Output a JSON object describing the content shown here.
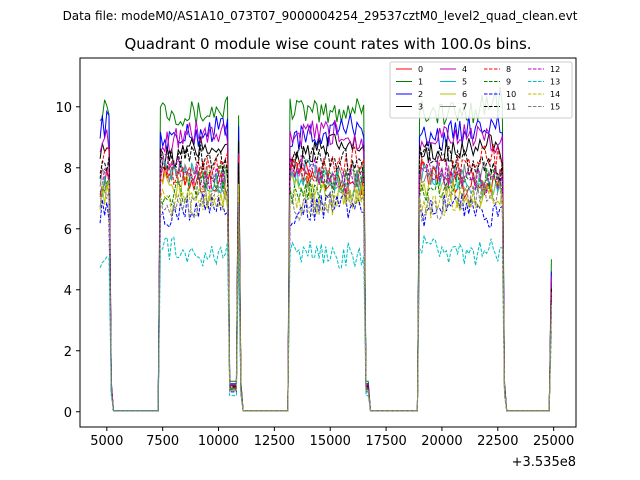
{
  "chart_data": {
    "type": "line",
    "suptitle": "Data file: modeM0/AS1A10_073T07_9000004254_29537cztM0_level2_quad_clean.evt",
    "title": "Quadrant 0 module wise count rates with 100.0s bins.",
    "xlabel": "",
    "ylabel": "",
    "x_offset_label": "+3.535e8",
    "xlim": [
      3800,
      26000
    ],
    "ylim": [
      -0.5,
      11.6
    ],
    "x_ticks": [
      5000,
      7500,
      10000,
      12500,
      15000,
      17500,
      20000,
      22500,
      25000
    ],
    "x_tick_labels": [
      "5000",
      "7500",
      "10000",
      "12500",
      "15000",
      "17500",
      "20000",
      "22500",
      "25000"
    ],
    "y_ticks": [
      0,
      2,
      4,
      6,
      8,
      10
    ],
    "y_tick_labels": [
      "0",
      "2",
      "4",
      "6",
      "8",
      "10"
    ],
    "grid": false,
    "legend_position": "upper-right",
    "legend_columns": 4,
    "bin_size_s": 100,
    "active_segments": [
      {
        "start": 4700,
        "end": 5100
      },
      {
        "start": 7400,
        "end": 10400
      },
      {
        "start": 10850,
        "end": 10950
      },
      {
        "start": 13200,
        "end": 16500
      },
      {
        "start": 19000,
        "end": 22700
      },
      {
        "start": 24900,
        "end": 24900
      }
    ],
    "zero_segments": [
      {
        "start": 5300,
        "end": 7300
      },
      {
        "start": 11100,
        "end": 13100
      },
      {
        "start": 16800,
        "end": 18900
      },
      {
        "start": 22900,
        "end": 24800
      }
    ],
    "series": [
      {
        "name": "0",
        "color": "#ff0000",
        "dash": "solid",
        "mean_rate": 7.7
      },
      {
        "name": "1",
        "color": "#008000",
        "dash": "solid",
        "mean_rate": 10.0
      },
      {
        "name": "2",
        "color": "#0000ff",
        "dash": "solid",
        "mean_rate": 9.2
      },
      {
        "name": "3",
        "color": "#000000",
        "dash": "solid",
        "mean_rate": 8.5
      },
      {
        "name": "4",
        "color": "#bf00bf",
        "dash": "solid",
        "mean_rate": 8.9
      },
      {
        "name": "5",
        "color": "#00bfbf",
        "dash": "solid",
        "mean_rate": 7.6
      },
      {
        "name": "6",
        "color": "#bfbf00",
        "dash": "solid",
        "mean_rate": 7.3
      },
      {
        "name": "7",
        "color": "#808080",
        "dash": "solid",
        "mean_rate": 7.9
      },
      {
        "name": "8",
        "color": "#ff0000",
        "dash": "dashed",
        "mean_rate": 8.1
      },
      {
        "name": "9",
        "color": "#008000",
        "dash": "dashed",
        "mean_rate": 7.4
      },
      {
        "name": "10",
        "color": "#0000ff",
        "dash": "dashed",
        "mean_rate": 6.5
      },
      {
        "name": "11",
        "color": "#000000",
        "dash": "dashed",
        "mean_rate": 8.2
      },
      {
        "name": "12",
        "color": "#bf00bf",
        "dash": "dashed",
        "mean_rate": 7.8
      },
      {
        "name": "13",
        "color": "#00bfbf",
        "dash": "dashed",
        "mean_rate": 5.3
      },
      {
        "name": "14",
        "color": "#bfbf00",
        "dash": "dashed",
        "mean_rate": 7.0
      },
      {
        "name": "15",
        "color": "#808080",
        "dash": "dashed",
        "mean_rate": 6.9
      }
    ]
  }
}
